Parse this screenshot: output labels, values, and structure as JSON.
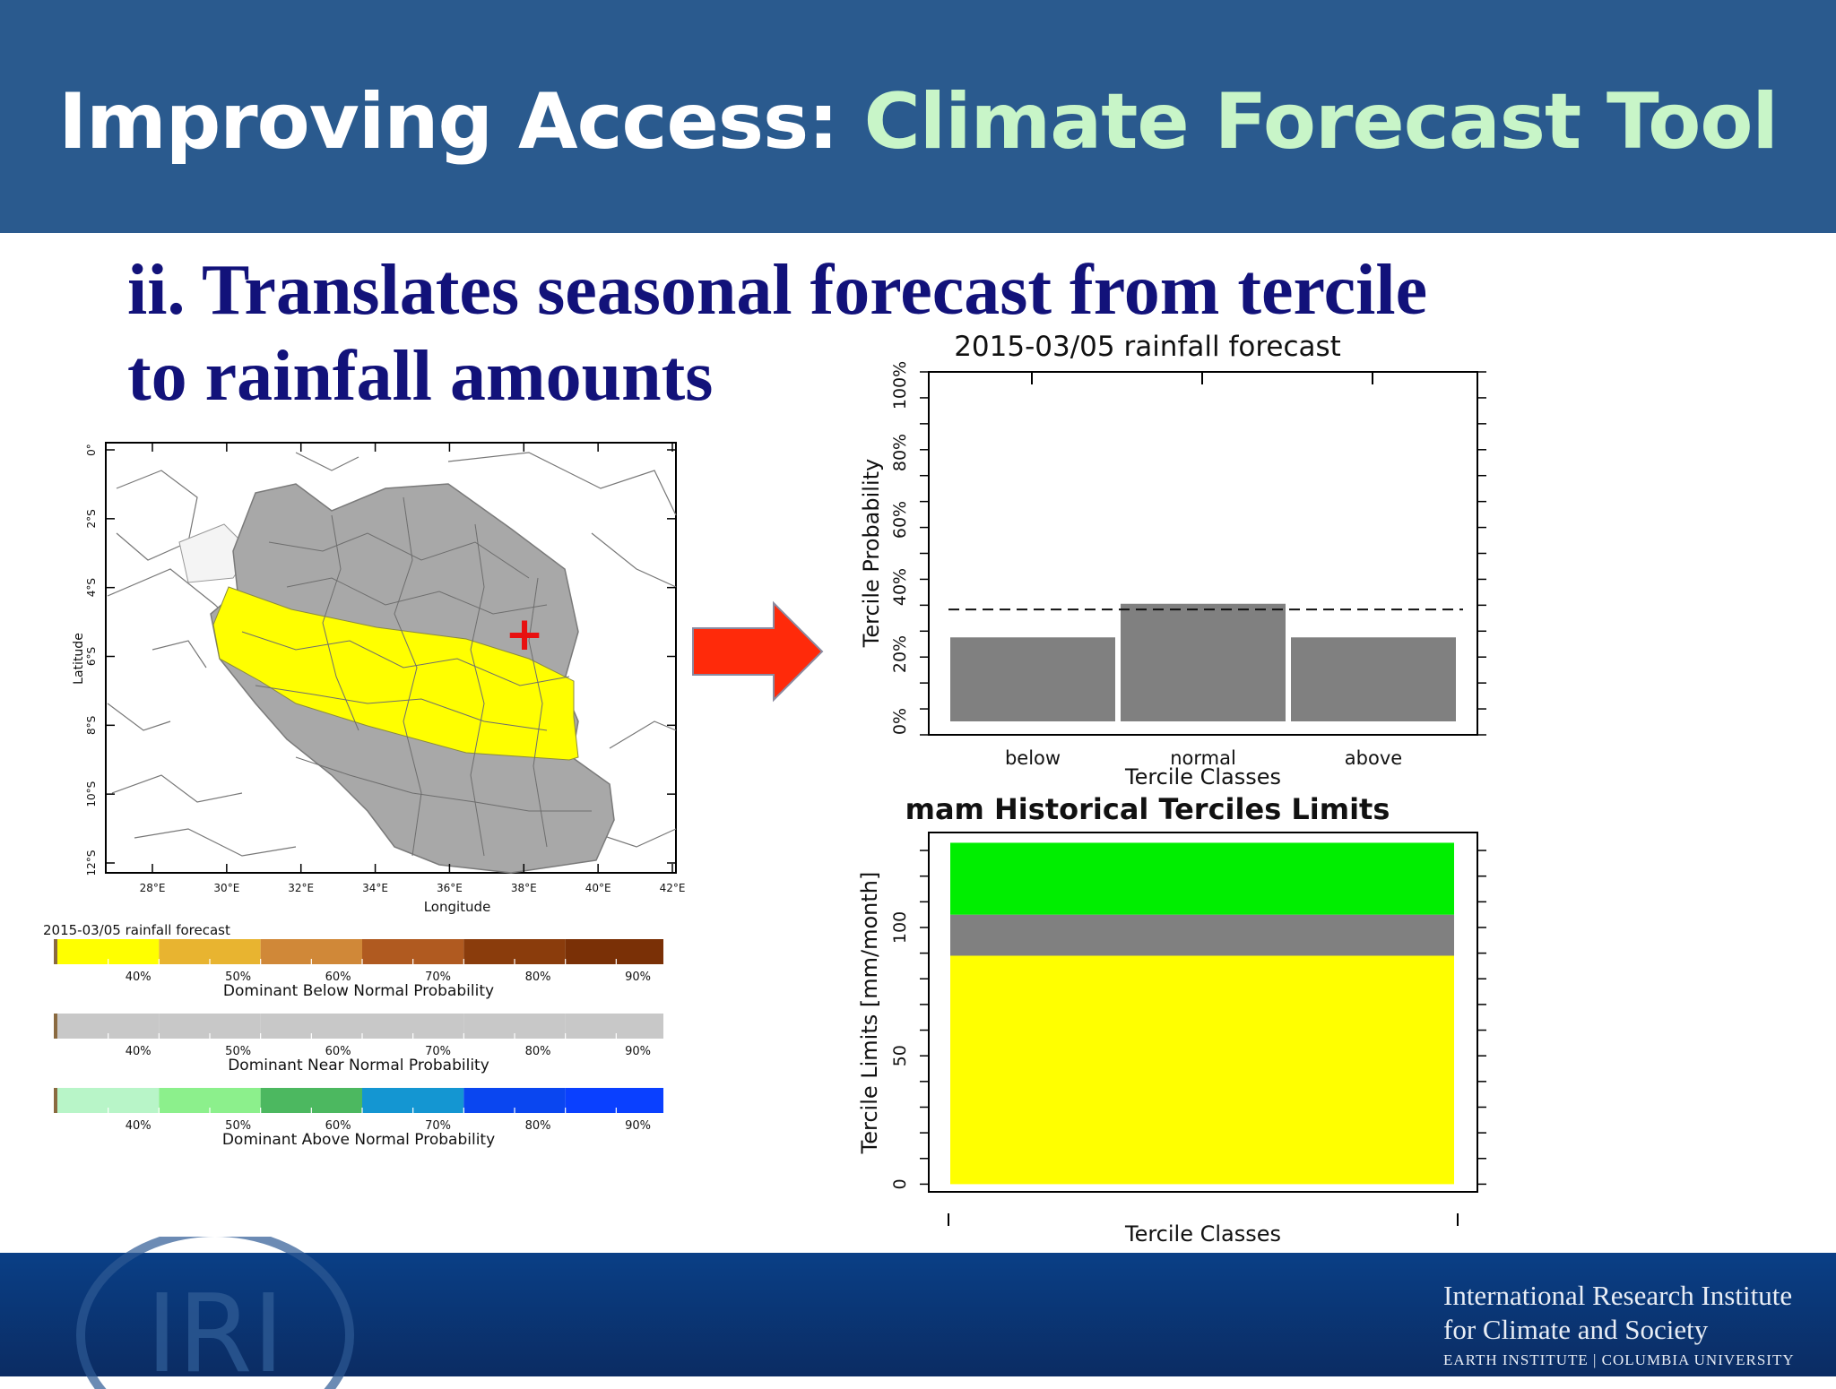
{
  "header": {
    "title_prefix": "Improving Access: ",
    "title_highlight": "Climate Forecast Tool"
  },
  "subtitle": {
    "line1": "ii. Translates seasonal forecast from tercile",
    "line2": "to rainfall amounts"
  },
  "map": {
    "lat_ticks": [
      "0°",
      "2°S",
      "4°S",
      "6°S",
      "8°S",
      "10°S",
      "12°S"
    ],
    "lon_ticks": [
      "28°E",
      "30°E",
      "32°E",
      "34°E",
      "36°E",
      "38°E",
      "40°E",
      "42°E"
    ],
    "xlabel": "Longitude",
    "ylabel": "Latitude",
    "marker": "+"
  },
  "legend": {
    "title": "2015-03/05 rainfall forecast",
    "ticks": [
      "40%",
      "50%",
      "60%",
      "70%",
      "80%",
      "90%"
    ],
    "bars": [
      {
        "label": "Dominant Below Normal Probability",
        "colors": [
          "#ffff00",
          "#e8b430",
          "#d08838",
          "#b05a20",
          "#8a3c0c",
          "#7a3006"
        ]
      },
      {
        "label": "Dominant Near Normal Probability",
        "colors": [
          "#c8c8c8",
          "#c8c8c8",
          "#c8c8c8",
          "#c8c8c8",
          "#c8c8c8",
          "#c8c8c8"
        ]
      },
      {
        "label": "Dominant Above Normal Probability",
        "colors": [
          "#b8f5c8",
          "#8cf08c",
          "#4cb860",
          "#1496d2",
          "#0a46f0",
          "#0a40ff"
        ]
      }
    ]
  },
  "chart_data": [
    {
      "type": "bar",
      "title": "2015-03/05 rainfall forecast",
      "categories": [
        "below",
        "normal",
        "above"
      ],
      "values": [
        0.25,
        0.35,
        0.25
      ],
      "reference_line": 0.333,
      "xlabel": "Tercile Classes",
      "ylabel": "Tercile Probability",
      "yticks": [
        "0%",
        "20%",
        "40%",
        "60%",
        "80%",
        "100%"
      ],
      "ylim": [
        0,
        1
      ],
      "bar_color": "#808080"
    },
    {
      "type": "bar",
      "title": "mam Historical Terciles Limits",
      "xlabel": "Tercile Classes",
      "ylabel": "Tercile Limits [mm/month]",
      "yticks": [
        "0",
        "50",
        "100"
      ],
      "ylim": [
        -3,
        137
      ],
      "series": [
        {
          "from": 0,
          "to": 89,
          "color": "#ffff00"
        },
        {
          "from": 89,
          "to": 105,
          "color": "#808080"
        },
        {
          "from": 105,
          "to": 133,
          "color": "#00ee00"
        }
      ]
    }
  ],
  "footer": {
    "logo_text": "IRI",
    "inst_line1": "International Research Institute",
    "inst_line2": "for Climate and Society",
    "inst_line3": "EARTH INSTITUTE | COLUMBIA UNIVERSITY"
  }
}
